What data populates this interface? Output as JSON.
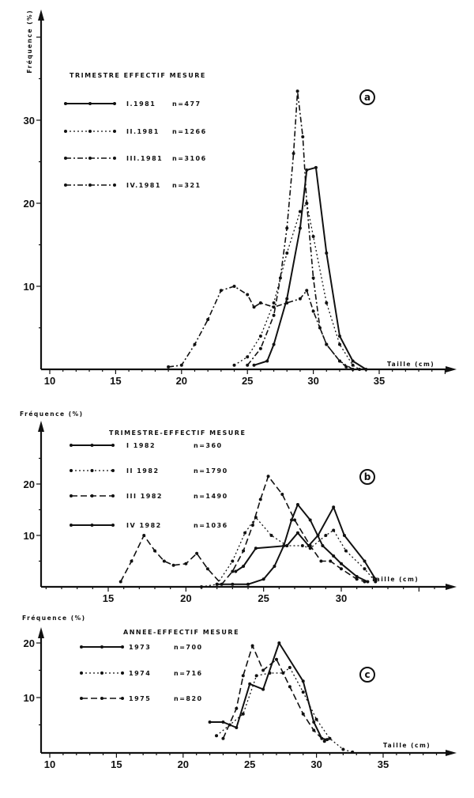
{
  "chart_data": [
    {
      "type": "line",
      "panel_label": "a",
      "ylabel": "Fréquence (%)",
      "xlabel": "Taille (cm)",
      "legend_title": "TRIMESTRE EFFECTIF MESURE",
      "xticks": [
        10,
        15,
        20,
        25,
        30,
        35
      ],
      "yticks": [
        10,
        20,
        30
      ],
      "xlim": [
        9.5,
        41
      ],
      "ylim": [
        0,
        40
      ],
      "series": [
        {
          "name": "I.1981",
          "n": "n=477",
          "style": "solid-dots",
          "points": [
            [
              25.5,
              0.5
            ],
            [
              26.5,
              1
            ],
            [
              27,
              3
            ],
            [
              28,
              8.5
            ],
            [
              29,
              17
            ],
            [
              29.5,
              24
            ],
            [
              30.2,
              24.3
            ],
            [
              31,
              14
            ],
            [
              32,
              4
            ],
            [
              33,
              1
            ],
            [
              34,
              0
            ]
          ]
        },
        {
          "name": "II.1981",
          "n": "n=1266",
          "style": "dotted",
          "points": [
            [
              24,
              0.5
            ],
            [
              25,
              1.5
            ],
            [
              26,
              4
            ],
            [
              27,
              8
            ],
            [
              28,
              14
            ],
            [
              29,
              19
            ],
            [
              29.5,
              20
            ],
            [
              30,
              16
            ],
            [
              31,
              8
            ],
            [
              32,
              3
            ],
            [
              33,
              0.5
            ],
            [
              33.5,
              0
            ]
          ]
        },
        {
          "name": "III.1981",
          "n": "n=3106",
          "style": "dashdot-dots",
          "points": [
            [
              25,
              0.5
            ],
            [
              26,
              2.5
            ],
            [
              27,
              6.5
            ],
            [
              27.5,
              11
            ],
            [
              28,
              17
            ],
            [
              28.5,
              26
            ],
            [
              28.8,
              33.5
            ],
            [
              29.2,
              28
            ],
            [
              29.5,
              20
            ],
            [
              30,
              11
            ],
            [
              30.5,
              5
            ],
            [
              31,
              3
            ],
            [
              32,
              1
            ],
            [
              33,
              0
            ]
          ]
        },
        {
          "name": "IV.1981",
          "n": "n=321",
          "style": "dashdot-dots",
          "points": [
            [
              19,
              0.3
            ],
            [
              20,
              0.5
            ],
            [
              21,
              3
            ],
            [
              22,
              6
            ],
            [
              23,
              9.5
            ],
            [
              24,
              10
            ],
            [
              25,
              9
            ],
            [
              25.5,
              7.5
            ],
            [
              26,
              8
            ],
            [
              27,
              7.5
            ],
            [
              28,
              8
            ],
            [
              29,
              8.5
            ],
            [
              29.5,
              9.5
            ],
            [
              30,
              7
            ],
            [
              31,
              3
            ],
            [
              32,
              1
            ],
            [
              32.5,
              0.3
            ]
          ]
        }
      ]
    },
    {
      "type": "line",
      "panel_label": "b",
      "ylabel": "Fréquence (%)",
      "xlabel": "Taille (cm)",
      "legend_title": "TRIMESTRE-EFFECTIF MESURE",
      "xticks": [
        15,
        20,
        25,
        30
      ],
      "yticks": [
        10,
        20
      ],
      "xlim": [
        10.6,
        37
      ],
      "ylim": [
        0,
        33
      ],
      "series": [
        {
          "name": "I 1982",
          "n": "n=360",
          "style": "solid-dots",
          "points": [
            [
              23.2,
              3
            ],
            [
              23.7,
              4
            ],
            [
              24.5,
              7.5
            ],
            [
              26.5,
              8
            ],
            [
              27.2,
              10.5
            ],
            [
              27.9,
              8
            ],
            [
              28.5,
              10
            ],
            [
              29.5,
              15.5
            ],
            [
              30.2,
              10
            ],
            [
              31.5,
              5
            ],
            [
              32.2,
              1.5
            ]
          ]
        },
        {
          "name": "II 1982",
          "n": "n=1790",
          "style": "dotted",
          "points": [
            [
              21,
              0
            ],
            [
              22,
              0.5
            ],
            [
              23,
              5
            ],
            [
              23.8,
              10.5
            ],
            [
              24.5,
              13.5
            ],
            [
              25.5,
              10
            ],
            [
              26.5,
              8
            ],
            [
              27.5,
              8
            ],
            [
              28,
              7.5
            ],
            [
              29,
              10
            ],
            [
              29.5,
              11
            ],
            [
              30.3,
              7
            ],
            [
              31.5,
              3.5
            ],
            [
              32.2,
              1
            ]
          ]
        },
        {
          "name": "III 1982",
          "n": "n=1490",
          "style": "dashed-dots",
          "points": [
            [
              15.8,
              1
            ],
            [
              16.5,
              5
            ],
            [
              17.3,
              10
            ],
            [
              18,
              7
            ],
            [
              18.6,
              5
            ],
            [
              19.2,
              4.2
            ],
            [
              20,
              4.5
            ],
            [
              20.7,
              6.5
            ],
            [
              21.4,
              3.5
            ],
            [
              22.3,
              0.5
            ],
            [
              23,
              3
            ],
            [
              23.7,
              7
            ],
            [
              24.3,
              12
            ],
            [
              24.8,
              17
            ],
            [
              25.3,
              21.5
            ],
            [
              26.2,
              18
            ],
            [
              27,
              13
            ],
            [
              28,
              8
            ],
            [
              28.7,
              5
            ],
            [
              29.3,
              5
            ],
            [
              30,
              3.5
            ],
            [
              31,
              1.5
            ],
            [
              31.5,
              1
            ]
          ]
        },
        {
          "name": "IV 1982",
          "n": "n=1036",
          "style": "solid-dots",
          "points": [
            [
              22,
              0.5
            ],
            [
              23,
              0.5
            ],
            [
              24,
              0.5
            ],
            [
              25,
              1.5
            ],
            [
              25.7,
              4
            ],
            [
              26.3,
              8
            ],
            [
              26.8,
              13
            ],
            [
              27.2,
              16
            ],
            [
              28,
              13
            ],
            [
              28.8,
              8
            ],
            [
              29.5,
              6
            ],
            [
              30,
              4.5
            ],
            [
              31,
              2
            ],
            [
              31.7,
              1
            ]
          ]
        }
      ]
    },
    {
      "type": "line",
      "panel_label": "c",
      "ylabel": "Fréquence (%)",
      "xlabel": "Taille (cm)",
      "legend_title": "ANNEE-EFFECTIF MESURE",
      "xticks": [
        10,
        15,
        20,
        25,
        30,
        35
      ],
      "yticks": [
        10,
        20
      ],
      "xlim": [
        9.5,
        40.5
      ],
      "ylim": [
        0,
        24
      ],
      "series": [
        {
          "name": "1973",
          "n": "n=700",
          "style": "solid-dots",
          "points": [
            [
              22,
              5.5
            ],
            [
              23,
              5.5
            ],
            [
              24,
              4.5
            ],
            [
              25,
              12.5
            ],
            [
              26,
              11.5
            ],
            [
              27.2,
              20
            ],
            [
              29,
              13
            ],
            [
              29.8,
              5.5
            ],
            [
              30.4,
              2.5
            ],
            [
              30.8,
              2.3
            ]
          ]
        },
        {
          "name": "1974",
          "n": "n=716",
          "style": "dotted",
          "points": [
            [
              22.5,
              3
            ],
            [
              23.5,
              5
            ],
            [
              24.5,
              7
            ],
            [
              25.5,
              14
            ],
            [
              26.5,
              14.5
            ],
            [
              27.5,
              14.5
            ],
            [
              28,
              15.5
            ],
            [
              29,
              11
            ],
            [
              30,
              6
            ],
            [
              31,
              2.5
            ],
            [
              32,
              0.5
            ],
            [
              32.7,
              0
            ]
          ]
        },
        {
          "name": "1975",
          "n": "n=820",
          "style": "dashed-dots",
          "points": [
            [
              23,
              2.5
            ],
            [
              24,
              8
            ],
            [
              24.5,
              14
            ],
            [
              25.2,
              19.5
            ],
            [
              26,
              15
            ],
            [
              27,
              17
            ],
            [
              28,
              12
            ],
            [
              29,
              7
            ],
            [
              29.8,
              4
            ],
            [
              30.6,
              2
            ]
          ]
        }
      ]
    }
  ]
}
